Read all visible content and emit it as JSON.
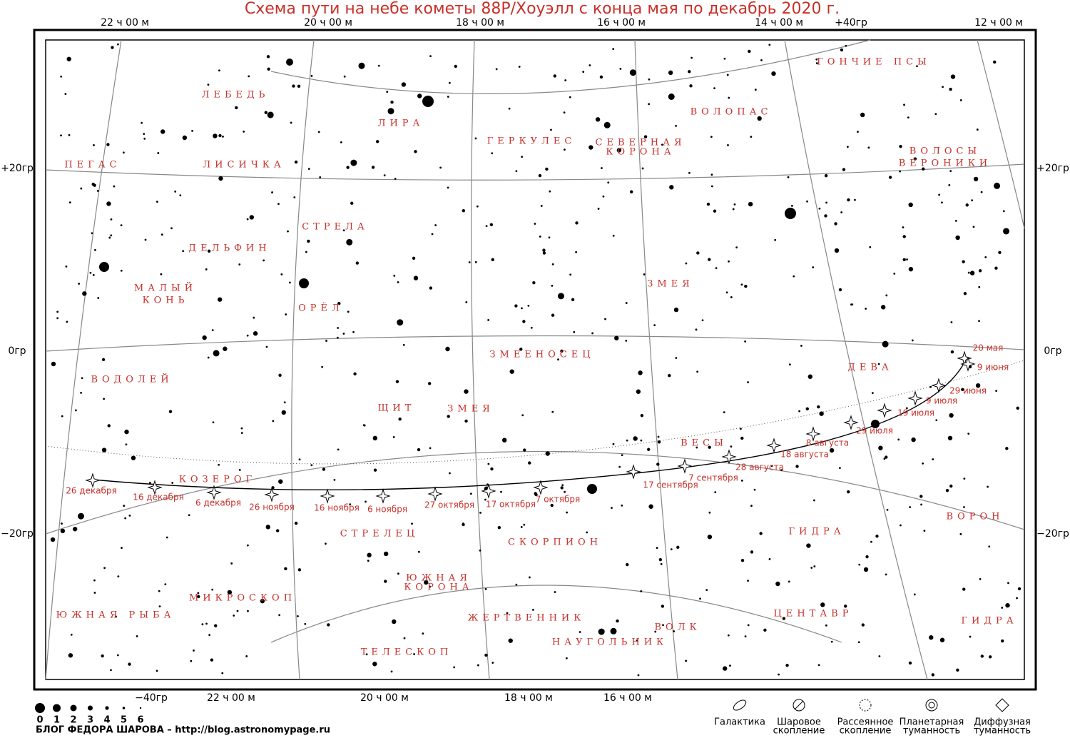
{
  "title": "Схема пути на небе кометы 88P/Хоуэлл с конца мая по декабрь 2020 г.",
  "top_labels": [
    "22 ч 00 м",
    "20 ч 00 м",
    "18 ч 00 м",
    "16 ч 00 м",
    "14 ч 00 м",
    "+40гр",
    "12 ч 00 м"
  ],
  "bottom_labels": [
    "−40гр",
    "22 ч 00 м",
    "20 ч 00 м",
    "18 ч 00 м",
    "16 ч 00 м"
  ],
  "left_labels": [
    "+20гр",
    "0гр",
    "−20гр"
  ],
  "right_labels": [
    "+20гр",
    "0гр",
    "−20гр"
  ],
  "constellations": [
    [
      "ПЕГАС"
    ],
    [
      "ЛЕБЕДЬ"
    ],
    [
      "ЛИСИЧКА"
    ],
    [
      "ЛИРА"
    ],
    [
      "ГЕРКУЛЕС"
    ],
    [
      "СЕВЕРНАЯ",
      "КОРОНА"
    ],
    [
      "ВОЛОПАС"
    ],
    [
      "ГОНЧИЕ ПСЫ"
    ],
    [
      "ВОЛОСЫ",
      "ВЕРОНИКИ"
    ],
    [
      "СТРЕЛА"
    ],
    [
      "ДЕЛЬФИН"
    ],
    [
      "МАЛЫЙ",
      "КОНЬ"
    ],
    [
      "ОРЁЛ"
    ],
    [
      "ЗМЕЯ"
    ],
    [
      "ЗМЕЕНОСЕЦ"
    ],
    [
      "ВОДОЛЕЙ"
    ],
    [
      "ДЕВА"
    ],
    [
      "ЩИТ"
    ],
    [
      "ЗМЕЯ"
    ],
    [
      "ВЕСЫ"
    ],
    [
      "КОЗЕРОГ"
    ],
    [
      "СТРЕЛЕЦ"
    ],
    [
      "СКОРПИОН"
    ],
    [
      "ГИДРА"
    ],
    [
      "ВОРОН"
    ],
    [
      "ЮЖНАЯ",
      "КОРОНА"
    ],
    [
      "МИКРОСКОП"
    ],
    [
      "ЮЖНАЯ РЫБА"
    ],
    [
      "ЖЕРТВЕННИК"
    ],
    [
      "ВОЛК"
    ],
    [
      "ЦЕНТАВР"
    ],
    [
      "ГИДРА"
    ],
    [
      "НАУГОЛЬНИК"
    ],
    [
      "ТЕЛЕСКОП"
    ]
  ],
  "comet_dates": [
    "20 мая",
    "9 июня",
    "29 июня",
    "9 июля",
    "19 июля",
    "29 июля",
    "8 августа",
    "18 августа",
    "28 августа",
    "7 сентября",
    "17 сентября",
    "7 октября",
    "17 октября",
    "27 октября",
    "6 ноября",
    "16 ноября",
    "26 ноября",
    "6 декабря",
    "16 декабря",
    "26 декабря"
  ],
  "magnitudes": [
    "0",
    "1",
    "2",
    "3",
    "4",
    "5",
    "6"
  ],
  "legend": [
    [
      "Галактика"
    ],
    [
      "Шаровое",
      "скопление"
    ],
    [
      "Рассеянное",
      "скопление"
    ],
    [
      "Планетарная",
      "туманность"
    ],
    [
      "Диффузная",
      "туманность"
    ]
  ],
  "footer": "БЛОГ  ФЕДОРА  ШАРОВА  –  http://blog.astronomypage.ru"
}
